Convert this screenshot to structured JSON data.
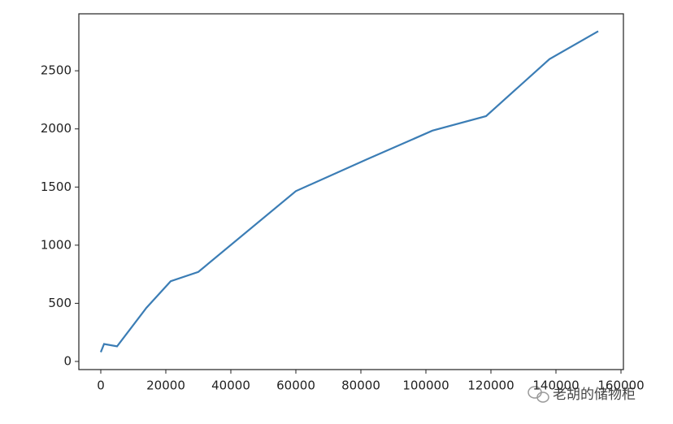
{
  "chart_data": {
    "type": "line",
    "x": [
      0,
      1000,
      5000,
      14000,
      21500,
      30000,
      60000,
      82000,
      102000,
      118500,
      138000,
      153000
    ],
    "values": [
      80,
      150,
      130,
      460,
      690,
      770,
      1465,
      1740,
      1985,
      2110,
      2600,
      2840
    ],
    "color": "#3b7db5",
    "xlim": [
      -6750,
      160750
    ],
    "xticks": [
      0,
      20000,
      40000,
      60000,
      80000,
      100000,
      120000,
      140000,
      160000
    ],
    "ylim": [
      -70,
      2990
    ],
    "yticks": [
      0,
      500,
      1000,
      1500,
      2000,
      2500
    ],
    "grid": false,
    "watermark": "老胡的储物柜"
  }
}
